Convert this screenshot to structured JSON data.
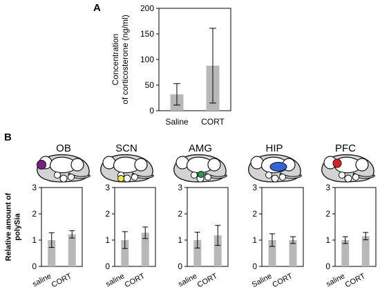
{
  "panels": {
    "A": "A",
    "B": "B"
  },
  "colors": {
    "bar": "#b8b8b8",
    "axis": "#000000",
    "brain_fill": "#d3d3d3",
    "brain_stroke": "#111111",
    "OB": "#7a1f86",
    "SCN": "#f0ee2f",
    "AMG": "#1fa34a",
    "HIP": "#2f63d6",
    "PFC": "#e41c1c"
  },
  "chart_data": [
    {
      "panel": "A",
      "type": "bar",
      "categories": [
        "Saline",
        "CORT"
      ],
      "values": [
        32,
        88
      ],
      "errors": [
        21,
        73
      ],
      "ylabel": "Concentration of corticosterone (ng/ml)",
      "ylim": [
        0,
        200
      ],
      "yticks": [
        0,
        50,
        100,
        150,
        200
      ],
      "grid": false,
      "significance_marker": ""
    },
    {
      "panel": "B",
      "type": "bar",
      "shared_ylabel": "Relative amount of polySia",
      "ylim": [
        0,
        3
      ],
      "yticks": [
        0,
        1,
        2,
        3
      ],
      "grid": false,
      "subplots": [
        {
          "title": "OB",
          "region_color_key": "OB",
          "categories": [
            "saline",
            "CORT"
          ],
          "values": [
            1.0,
            1.22
          ],
          "errors": [
            0.28,
            0.14
          ]
        },
        {
          "title": "SCN",
          "region_color_key": "SCN",
          "categories": [
            "saline",
            "CORT"
          ],
          "values": [
            1.0,
            1.28
          ],
          "errors": [
            0.32,
            0.22
          ]
        },
        {
          "title": "AMG",
          "region_color_key": "AMG",
          "categories": [
            "saline",
            "CORT"
          ],
          "values": [
            1.0,
            1.18
          ],
          "errors": [
            0.3,
            0.38
          ]
        },
        {
          "title": "HIP",
          "region_color_key": "HIP",
          "categories": [
            "Saline",
            "CORT"
          ],
          "values": [
            1.0,
            1.0
          ],
          "errors": [
            0.24,
            0.13
          ]
        },
        {
          "title": "PFC",
          "region_color_key": "PFC",
          "categories": [
            "saline",
            "CORT"
          ],
          "values": [
            1.0,
            1.15
          ],
          "errors": [
            0.13,
            0.14
          ]
        }
      ]
    }
  ]
}
